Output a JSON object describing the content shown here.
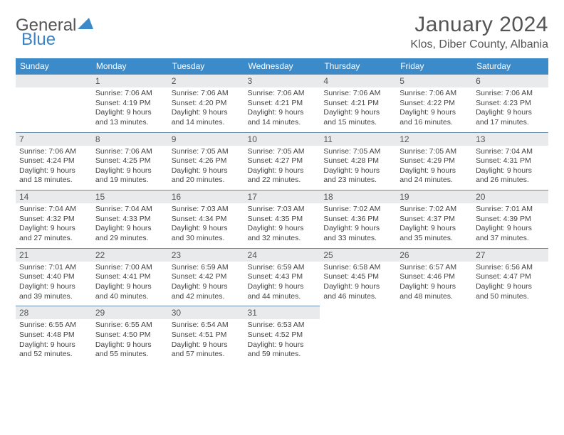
{
  "logo": {
    "text_a": "General",
    "text_b": "Blue",
    "tri_color": "#3b8aca"
  },
  "title": "January 2024",
  "location": "Klos, Diber County, Albania",
  "header_bg": "#3b8aca",
  "daynum_bg": "#e8eaec",
  "days": [
    "Sunday",
    "Monday",
    "Tuesday",
    "Wednesday",
    "Thursday",
    "Friday",
    "Saturday"
  ],
  "weeks": [
    [
      null,
      {
        "n": "1",
        "sr": "Sunrise: 7:06 AM",
        "ss": "Sunset: 4:19 PM",
        "d1": "Daylight: 9 hours",
        "d2": "and 13 minutes."
      },
      {
        "n": "2",
        "sr": "Sunrise: 7:06 AM",
        "ss": "Sunset: 4:20 PM",
        "d1": "Daylight: 9 hours",
        "d2": "and 14 minutes."
      },
      {
        "n": "3",
        "sr": "Sunrise: 7:06 AM",
        "ss": "Sunset: 4:21 PM",
        "d1": "Daylight: 9 hours",
        "d2": "and 14 minutes."
      },
      {
        "n": "4",
        "sr": "Sunrise: 7:06 AM",
        "ss": "Sunset: 4:21 PM",
        "d1": "Daylight: 9 hours",
        "d2": "and 15 minutes."
      },
      {
        "n": "5",
        "sr": "Sunrise: 7:06 AM",
        "ss": "Sunset: 4:22 PM",
        "d1": "Daylight: 9 hours",
        "d2": "and 16 minutes."
      },
      {
        "n": "6",
        "sr": "Sunrise: 7:06 AM",
        "ss": "Sunset: 4:23 PM",
        "d1": "Daylight: 9 hours",
        "d2": "and 17 minutes."
      }
    ],
    [
      {
        "n": "7",
        "sr": "Sunrise: 7:06 AM",
        "ss": "Sunset: 4:24 PM",
        "d1": "Daylight: 9 hours",
        "d2": "and 18 minutes."
      },
      {
        "n": "8",
        "sr": "Sunrise: 7:06 AM",
        "ss": "Sunset: 4:25 PM",
        "d1": "Daylight: 9 hours",
        "d2": "and 19 minutes."
      },
      {
        "n": "9",
        "sr": "Sunrise: 7:05 AM",
        "ss": "Sunset: 4:26 PM",
        "d1": "Daylight: 9 hours",
        "d2": "and 20 minutes."
      },
      {
        "n": "10",
        "sr": "Sunrise: 7:05 AM",
        "ss": "Sunset: 4:27 PM",
        "d1": "Daylight: 9 hours",
        "d2": "and 22 minutes."
      },
      {
        "n": "11",
        "sr": "Sunrise: 7:05 AM",
        "ss": "Sunset: 4:28 PM",
        "d1": "Daylight: 9 hours",
        "d2": "and 23 minutes."
      },
      {
        "n": "12",
        "sr": "Sunrise: 7:05 AM",
        "ss": "Sunset: 4:29 PM",
        "d1": "Daylight: 9 hours",
        "d2": "and 24 minutes."
      },
      {
        "n": "13",
        "sr": "Sunrise: 7:04 AM",
        "ss": "Sunset: 4:31 PM",
        "d1": "Daylight: 9 hours",
        "d2": "and 26 minutes."
      }
    ],
    [
      {
        "n": "14",
        "sr": "Sunrise: 7:04 AM",
        "ss": "Sunset: 4:32 PM",
        "d1": "Daylight: 9 hours",
        "d2": "and 27 minutes."
      },
      {
        "n": "15",
        "sr": "Sunrise: 7:04 AM",
        "ss": "Sunset: 4:33 PM",
        "d1": "Daylight: 9 hours",
        "d2": "and 29 minutes."
      },
      {
        "n": "16",
        "sr": "Sunrise: 7:03 AM",
        "ss": "Sunset: 4:34 PM",
        "d1": "Daylight: 9 hours",
        "d2": "and 30 minutes."
      },
      {
        "n": "17",
        "sr": "Sunrise: 7:03 AM",
        "ss": "Sunset: 4:35 PM",
        "d1": "Daylight: 9 hours",
        "d2": "and 32 minutes."
      },
      {
        "n": "18",
        "sr": "Sunrise: 7:02 AM",
        "ss": "Sunset: 4:36 PM",
        "d1": "Daylight: 9 hours",
        "d2": "and 33 minutes."
      },
      {
        "n": "19",
        "sr": "Sunrise: 7:02 AM",
        "ss": "Sunset: 4:37 PM",
        "d1": "Daylight: 9 hours",
        "d2": "and 35 minutes."
      },
      {
        "n": "20",
        "sr": "Sunrise: 7:01 AM",
        "ss": "Sunset: 4:39 PM",
        "d1": "Daylight: 9 hours",
        "d2": "and 37 minutes."
      }
    ],
    [
      {
        "n": "21",
        "sr": "Sunrise: 7:01 AM",
        "ss": "Sunset: 4:40 PM",
        "d1": "Daylight: 9 hours",
        "d2": "and 39 minutes."
      },
      {
        "n": "22",
        "sr": "Sunrise: 7:00 AM",
        "ss": "Sunset: 4:41 PM",
        "d1": "Daylight: 9 hours",
        "d2": "and 40 minutes."
      },
      {
        "n": "23",
        "sr": "Sunrise: 6:59 AM",
        "ss": "Sunset: 4:42 PM",
        "d1": "Daylight: 9 hours",
        "d2": "and 42 minutes."
      },
      {
        "n": "24",
        "sr": "Sunrise: 6:59 AM",
        "ss": "Sunset: 4:43 PM",
        "d1": "Daylight: 9 hours",
        "d2": "and 44 minutes."
      },
      {
        "n": "25",
        "sr": "Sunrise: 6:58 AM",
        "ss": "Sunset: 4:45 PM",
        "d1": "Daylight: 9 hours",
        "d2": "and 46 minutes."
      },
      {
        "n": "26",
        "sr": "Sunrise: 6:57 AM",
        "ss": "Sunset: 4:46 PM",
        "d1": "Daylight: 9 hours",
        "d2": "and 48 minutes."
      },
      {
        "n": "27",
        "sr": "Sunrise: 6:56 AM",
        "ss": "Sunset: 4:47 PM",
        "d1": "Daylight: 9 hours",
        "d2": "and 50 minutes."
      }
    ],
    [
      {
        "n": "28",
        "sr": "Sunrise: 6:55 AM",
        "ss": "Sunset: 4:48 PM",
        "d1": "Daylight: 9 hours",
        "d2": "and 52 minutes."
      },
      {
        "n": "29",
        "sr": "Sunrise: 6:55 AM",
        "ss": "Sunset: 4:50 PM",
        "d1": "Daylight: 9 hours",
        "d2": "and 55 minutes."
      },
      {
        "n": "30",
        "sr": "Sunrise: 6:54 AM",
        "ss": "Sunset: 4:51 PM",
        "d1": "Daylight: 9 hours",
        "d2": "and 57 minutes."
      },
      {
        "n": "31",
        "sr": "Sunrise: 6:53 AM",
        "ss": "Sunset: 4:52 PM",
        "d1": "Daylight: 9 hours",
        "d2": "and 59 minutes."
      },
      null,
      null,
      null
    ]
  ]
}
